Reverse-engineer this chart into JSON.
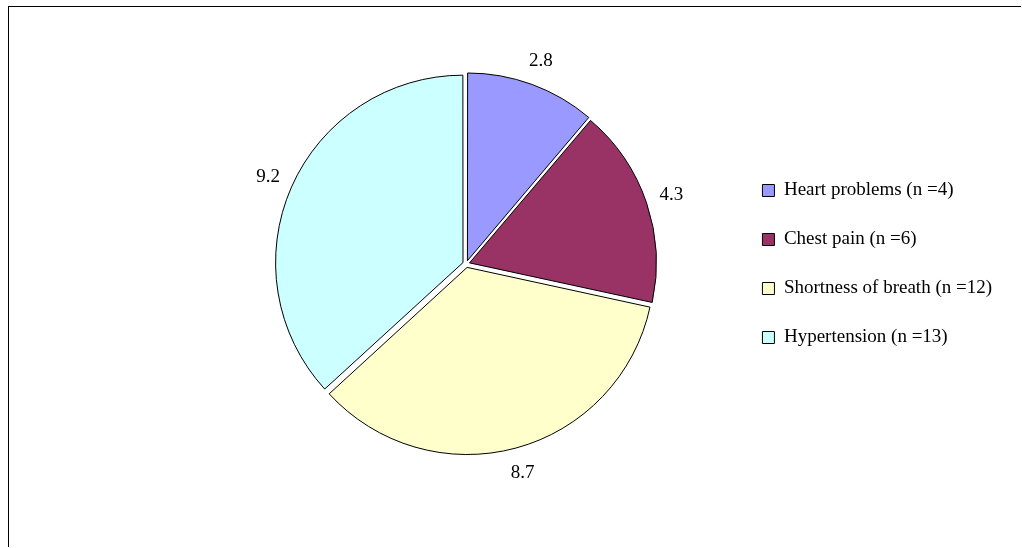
{
  "chart_data": {
    "type": "pie",
    "categories": [
      "Heart problems (n =4)",
      "Chest pain (n =6)",
      "Shortness of breath (n =12)",
      "Hypertension (n =13)"
    ],
    "values": [
      2.8,
      4.3,
      8.7,
      9.2
    ],
    "colors": [
      "#9999ff",
      "#993366",
      "#ffffcc",
      "#ccffff"
    ],
    "data_labels": true,
    "legend": "right"
  }
}
